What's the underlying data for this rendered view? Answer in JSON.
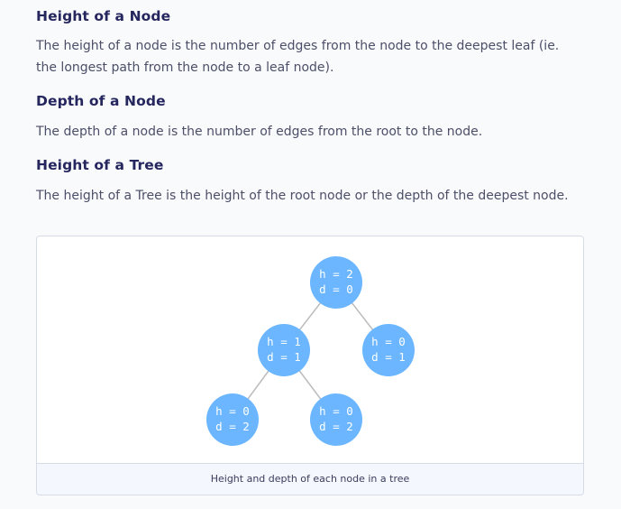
{
  "sections": [
    {
      "heading": "Height of a Node",
      "text": "The height of a node is the number of edges from the node to the deepest leaf (ie. the longest path from the node to a leaf node)."
    },
    {
      "heading": "Depth of a Node",
      "text": "The depth of a node is the number of edges from the root to the node."
    },
    {
      "heading": "Height of a Tree",
      "text": "The height of a Tree is the height of the root node or the depth of the deepest node."
    }
  ],
  "figure": {
    "caption": "Height and depth of each node in a tree",
    "node_color": "#6bb6ff",
    "edge_color": "#bcbcbc",
    "nodes": [
      {
        "id": "root",
        "h_label": "h = 2",
        "d_label": "d = 0"
      },
      {
        "id": "left",
        "h_label": "h = 1",
        "d_label": "d = 1"
      },
      {
        "id": "right",
        "h_label": "h = 0",
        "d_label": "d = 1"
      },
      {
        "id": "left-left",
        "h_label": "h = 0",
        "d_label": "d = 2"
      },
      {
        "id": "left-right",
        "h_label": "h = 0",
        "d_label": "d = 2"
      }
    ]
  }
}
